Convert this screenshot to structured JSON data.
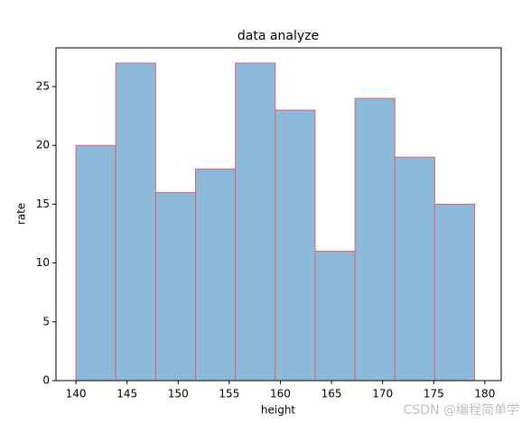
{
  "chart_data": {
    "type": "histogram",
    "title": "data analyze",
    "x_label": "height",
    "y_label": "rate",
    "bins": [
      140,
      143.9,
      147.8,
      151.7,
      155.6,
      159.5,
      163.4,
      167.3,
      171.2,
      175.1,
      179
    ],
    "values": [
      20,
      27,
      16,
      18,
      27,
      23,
      11,
      24,
      19,
      15
    ],
    "color": "#8db9da",
    "edge_color": "#e0626f",
    "xlim": [
      138.05,
      181.6
    ],
    "xticks": [
      140,
      145,
      150,
      155,
      160,
      165,
      170,
      175,
      180
    ],
    "ylim": [
      0,
      28.3
    ],
    "yticks": [
      0,
      5,
      10,
      15,
      20,
      25
    ]
  },
  "watermark": "CSDN @编程简单学"
}
